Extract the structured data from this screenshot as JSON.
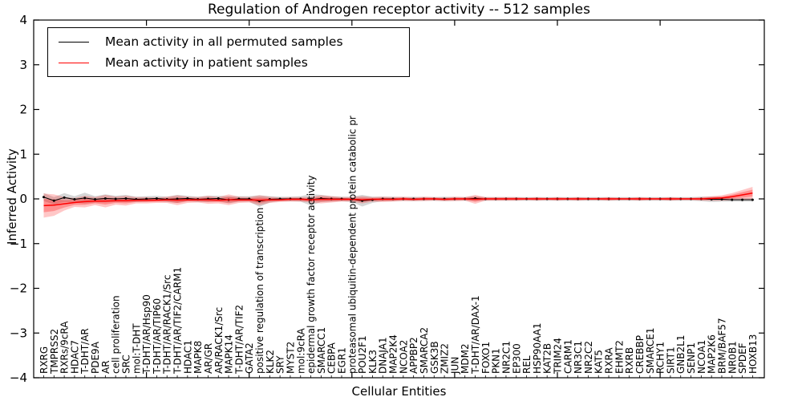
{
  "chart_data": {
    "type": "line",
    "title": "Regulation of Androgen receptor activity -- 512 samples",
    "xlabel": "Cellular Entities",
    "ylabel": "Inferred Activity",
    "ylim": [
      -4,
      4
    ],
    "yticks": [
      "4",
      "3",
      "2",
      "1",
      "0",
      "−1",
      "−2",
      "−3",
      "−4"
    ],
    "grid": false,
    "legend": {
      "position": "upper left",
      "entries": [
        {
          "label": "Mean activity in all permuted samples",
          "color": "#000000"
        },
        {
          "label": "Mean activity in patient samples",
          "color": "#ff0000"
        }
      ]
    },
    "categories": [
      "RXRG",
      "TMPRSS2",
      "RXRs/9cRA",
      "HDAC7",
      "T-DHT/AR",
      "PDE9A",
      "AR",
      "cell proliferation",
      "SRC",
      "mol:T-DHT",
      "T-DHT/AR/Hsp90",
      "T-DHT/AR/TIP60",
      "T-DHT/AR/RACK1/Src",
      "T-DHT/AR/TIF2/CARM1",
      "HDAC1",
      "MAPK8",
      "AR/GR",
      "AR/RACK1/Src",
      "MAPK14",
      "T-DHT/AR/TIF2",
      "GATA2",
      "positive regulation of transcription",
      "KLK2",
      "SRY",
      "MYST2",
      "mol:9cRA",
      "epidermal growth factor receptor activity",
      "SMARCC1",
      "CEBPA",
      "EGR1",
      "proteasomal ubiquitin-dependent protein catabolic pr",
      "POU2F1",
      "KLK3",
      "DNAJA1",
      "MAP2K4",
      "NCOA2",
      "APPBP2",
      "SMARCA2",
      "GSK3B",
      "ZMIZ2",
      "JUN",
      "MDM2",
      "T-DHT/AR/DAX-1",
      "FOXO1",
      "PKN1",
      "NR2C1",
      "EP300",
      "REL",
      "HSP90AA1",
      "KAT2B",
      "TRIM24",
      "CARM1",
      "NR3C1",
      "NR2C2",
      "KAT5",
      "RXRA",
      "EHMT2",
      "RXRB",
      "CREBBP",
      "SMARCE1",
      "RCHY1",
      "SIRT1",
      "GNB2L1",
      "SENP1",
      "NCOA1",
      "MAP2K6",
      "BRM/BAF57",
      "NR0B1",
      "SPDEF",
      "HOXB13"
    ],
    "series": [
      {
        "name": "Mean activity in all permuted samples",
        "color": "#000000",
        "band_color": "#808080",
        "values": [
          0.04,
          -0.04,
          0.03,
          -0.01,
          0.02,
          -0.01,
          0.01,
          0,
          0.01,
          -0.01,
          0,
          0.01,
          -0.01,
          0,
          0.01,
          -0.01,
          0,
          0.01,
          -0.02,
          0,
          0,
          -0.05,
          -0.01,
          0,
          0,
          0,
          -0.02,
          0.01,
          0,
          0,
          -0.01,
          -0.04,
          -0.02,
          0,
          0,
          0,
          0,
          0,
          0,
          0,
          0,
          0,
          0.01,
          0,
          0,
          0,
          0,
          0,
          0,
          0,
          0,
          0,
          0,
          0,
          0,
          0,
          0,
          0,
          0,
          0,
          0,
          0,
          0,
          0,
          0,
          -0.01,
          -0.01,
          -0.02,
          -0.02,
          -0.02
        ],
        "band_halfwidth": [
          0.09,
          0.08,
          0.1,
          0.07,
          0.12,
          0.07,
          0.09,
          0.07,
          0.08,
          0.06,
          0.06,
          0.06,
          0.06,
          0.09,
          0.06,
          0.06,
          0.07,
          0.06,
          0.08,
          0.06,
          0.06,
          0.13,
          0.07,
          0.05,
          0.05,
          0.06,
          0.13,
          0.08,
          0.06,
          0.05,
          0.06,
          0.13,
          0.07,
          0.05,
          0.05,
          0.04,
          0.05,
          0.04,
          0.04,
          0.05,
          0.04,
          0.04,
          0.05,
          0.04,
          0.04,
          0.04,
          0.04,
          0.04,
          0.04,
          0.04,
          0.04,
          0.04,
          0.04,
          0.04,
          0.04,
          0.04,
          0.04,
          0.04,
          0.04,
          0.04,
          0.04,
          0.04,
          0.04,
          0.04,
          0.05,
          0.06,
          0.05,
          0.04,
          0.04,
          0.04
        ]
      },
      {
        "name": "Mean activity in patient samples",
        "color": "#ff0000",
        "band_color": "#ff0000",
        "values": [
          -0.15,
          -0.14,
          -0.11,
          -0.08,
          -0.06,
          -0.05,
          -0.05,
          -0.04,
          -0.04,
          -0.03,
          -0.03,
          -0.03,
          -0.02,
          -0.03,
          -0.02,
          -0.02,
          -0.02,
          -0.03,
          -0.02,
          -0.02,
          -0.02,
          -0.03,
          -0.02,
          -0.02,
          -0.01,
          -0.01,
          -0.02,
          -0.01,
          -0.01,
          -0.01,
          -0.01,
          -0.02,
          -0.01,
          -0.01,
          -0.01,
          0,
          -0.01,
          0,
          0,
          -0.01,
          0,
          0,
          -0.01,
          0,
          0,
          0,
          0,
          0,
          0,
          0,
          0,
          0,
          0,
          0,
          0,
          0,
          0,
          0,
          0,
          0,
          0,
          0,
          0,
          0,
          0,
          0.01,
          0.02,
          0.05,
          0.09,
          0.13
        ],
        "band_halfwidth": [
          0.27,
          0.24,
          0.15,
          0.1,
          0.13,
          0.09,
          0.14,
          0.09,
          0.11,
          0.07,
          0.07,
          0.06,
          0.07,
          0.11,
          0.07,
          0.06,
          0.09,
          0.07,
          0.12,
          0.07,
          0.06,
          0.11,
          0.07,
          0.05,
          0.05,
          0.05,
          0.06,
          0.09,
          0.07,
          0.05,
          0.05,
          0.08,
          0.05,
          0.06,
          0.05,
          0.05,
          0.04,
          0.05,
          0.04,
          0.04,
          0.05,
          0.04,
          0.1,
          0.04,
          0.04,
          0.04,
          0.04,
          0.03,
          0.04,
          0.03,
          0.04,
          0.03,
          0.04,
          0.03,
          0.03,
          0.04,
          0.03,
          0.03,
          0.04,
          0.03,
          0.03,
          0.04,
          0.03,
          0.03,
          0.04,
          0.05,
          0.06,
          0.08,
          0.11,
          0.14
        ]
      }
    ]
  }
}
